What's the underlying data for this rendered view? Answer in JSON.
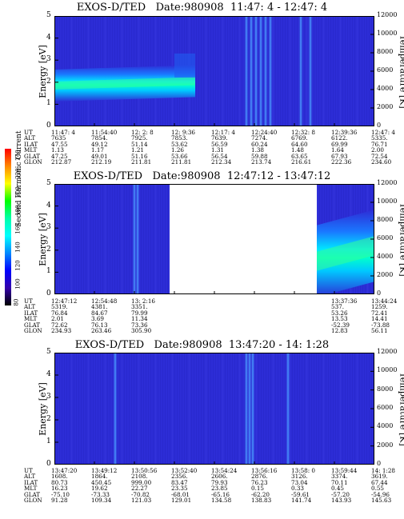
{
  "colorbar": {
    "label": "Second Harmonic Current",
    "ticks": [
      "240",
      "220",
      "200",
      "180",
      "160",
      "140",
      "120",
      "100",
      "80"
    ],
    "colors": [
      "#ff0000",
      "#ff8800",
      "#ffff00",
      "#00ff00",
      "#00ffaa",
      "#00ffff",
      "#0088ff",
      "#0000ff",
      "#3300aa",
      "#000000"
    ]
  },
  "chart_data": [
    {
      "type": "heatmap",
      "title": "EXOS-D/TED   Date:980908  11:47: 4 - 12:47: 4",
      "ylabel": "Energy [eV]",
      "y2label": "Temperature [K]",
      "ylim": [
        0,
        5
      ],
      "y_ticks": [
        "0",
        "1",
        "2",
        "3",
        "4",
        "5"
      ],
      "y2lim": [
        0,
        12000
      ],
      "y2_ticks": [
        "0",
        "2000",
        "4000",
        "6000",
        "8000",
        "10000",
        "12000"
      ],
      "background": "#2d2dd6",
      "coverage": [
        [
          0,
          1
        ]
      ],
      "band": {
        "x": [
          0,
          0.44
        ],
        "y_center": [
          1.85,
          2.05
        ],
        "intensity": 0.7
      },
      "spikes": [
        0.6,
        0.615,
        0.63,
        0.645,
        0.66,
        0.675,
        0.77,
        0.8
      ],
      "orbit_params": {
        "labels": [
          "UT",
          "ALT",
          "ILAT",
          "MLT",
          "GLAT",
          "GLON"
        ],
        "columns": [
          [
            "11:47: 4",
            "7635",
            "47.55",
            "1.13",
            "47.25",
            "212.87"
          ],
          [
            "11:54:40",
            "7854.",
            "49.12",
            "1.17",
            "49.01",
            "212.19"
          ],
          [
            "12: 2: 8",
            "7925.",
            "51.14",
            "1.21",
            "51.16",
            "211.81"
          ],
          [
            "12: 9:36",
            "7853.",
            "53.62",
            "1.26",
            "53.66",
            "211.81"
          ],
          [
            "12:17: 4",
            "7639.",
            "56.59",
            "1.31",
            "56.54",
            "212.34"
          ],
          [
            "12:24:40",
            "7274.",
            "60.24",
            "1.38",
            "59.88",
            "213.74"
          ],
          [
            "12:32: 8",
            "6769.",
            "64.60",
            "1.48",
            "63.65",
            "216.61"
          ],
          [
            "12:39:36",
            "6122.",
            "69.99",
            "1.64",
            "67.93",
            "222.36"
          ],
          [
            "12:47: 4",
            "5335.",
            "76.71",
            "2.00",
            "72.54",
            "234.60"
          ]
        ]
      }
    },
    {
      "type": "heatmap",
      "title": "EXOS-D/TED   Date:980908  12:47:12 - 13:47:12",
      "ylabel": "Energy [eV]",
      "y2label": "Temperature [K]",
      "ylim": [
        0,
        5
      ],
      "y_ticks": [
        "0",
        "1",
        "2",
        "3",
        "4",
        "5"
      ],
      "y2lim": [
        0,
        12000
      ],
      "y2_ticks": [
        "0",
        "2000",
        "4000",
        "6000",
        "8000",
        "10000",
        "12000"
      ],
      "background": "#2d2dd6",
      "coverage": [
        [
          0,
          0.36
        ],
        [
          0.82,
          1
        ]
      ],
      "band": {
        "x": [
          0.82,
          1
        ],
        "y_center": [
          1.5,
          2.2
        ],
        "intensity": 0.75
      },
      "spikes": [
        0.25,
        0.26
      ],
      "orbit_params": {
        "labels": [
          "UT",
          "ALT",
          "ILAT",
          "MLT",
          "GLAT",
          "GLON"
        ],
        "columns": [
          [
            "12:47:12",
            "5319.",
            "76.84",
            "2.01",
            "72.62",
            "234.93"
          ],
          [
            "12:54:48",
            "4381.",
            "84.67",
            "3.69",
            "76.13",
            "263.46"
          ],
          [
            "13: 2:16",
            "3351.",
            "79.99",
            "11.34",
            "73.36",
            "305.90"
          ],
          [
            "",
            "",
            "",
            "",
            "",
            ""
          ],
          [
            "",
            "",
            "",
            "",
            "",
            ""
          ],
          [
            "",
            "",
            "",
            "",
            "",
            ""
          ],
          [
            "",
            "",
            "",
            "",
            "",
            ""
          ],
          [
            "13:37:36",
            "537.",
            "53.26",
            "13.53",
            "-52.39",
            "12.83"
          ],
          [
            "13:44:24",
            "1259.",
            "72.41",
            "14.41",
            "-73.88",
            "56.11"
          ]
        ]
      }
    },
    {
      "type": "heatmap",
      "title": "EXOS-D/TED   Date:980908  13:47:20 - 14: 1:28",
      "ylabel": "Energy [eV]",
      "y2label": "Temperature [K]",
      "ylim": [
        0,
        5
      ],
      "y_ticks": [
        "0",
        "1",
        "2",
        "3",
        "4",
        "5"
      ],
      "y2lim": [
        0,
        12000
      ],
      "y2_ticks": [
        "0",
        "2000",
        "4000",
        "6000",
        "8000",
        "10000",
        "12000"
      ],
      "background": "#2d2dd6",
      "coverage": [
        [
          0,
          1
        ]
      ],
      "band": null,
      "spikes": [
        0.19,
        0.6,
        0.61,
        0.62,
        0.73
      ],
      "orbit_params": {
        "labels": [
          "UT",
          "ALT",
          "ILAT",
          "MLT",
          "GLAT",
          "GLON"
        ],
        "columns": [
          [
            "13:47:20",
            "1608.",
            "80.73",
            "16.23",
            "-75.10",
            "91.28"
          ],
          [
            "13:49:12",
            "1864.",
            "450.45",
            "19.62",
            "-73.33",
            "109.34"
          ],
          [
            "13:50:56",
            "2108.",
            "999.00",
            "22.27",
            "-70.82",
            "121.03"
          ],
          [
            "13:52:40",
            "2356.",
            "83.47",
            "23.35",
            "-68.01",
            "129.01"
          ],
          [
            "13:54:24",
            "2606.",
            "79.93",
            "23.85",
            "-65.16",
            "134.58"
          ],
          [
            "13:56:16",
            "2876.",
            "76.23",
            "0.15",
            "-62.20",
            "138.83"
          ],
          [
            "13:58: 0",
            "3126.",
            "73.04",
            "0.33",
            "-59.61",
            "141.74"
          ],
          [
            "13:59:44",
            "3374.",
            "70.11",
            "0.45",
            "-57.20",
            "143.93"
          ],
          [
            "14: 1:28",
            "3619.",
            "67.44",
            "0.55",
            "-54.96",
            "145.63"
          ]
        ]
      }
    }
  ]
}
